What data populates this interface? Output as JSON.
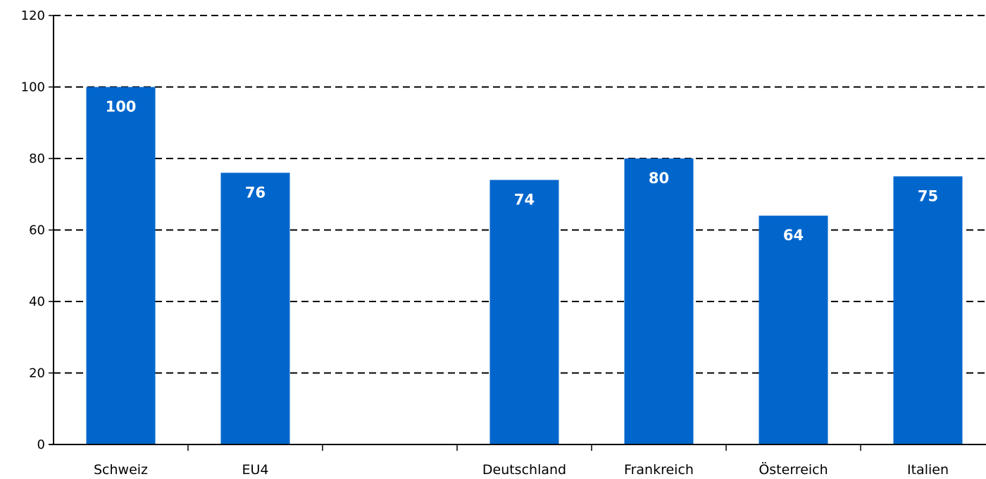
{
  "chart_data": {
    "type": "bar",
    "categories": [
      "Schweiz",
      "EU4",
      "",
      "Deutschland",
      "Frankreich",
      "Österreich",
      "Italien"
    ],
    "values": [
      100,
      76,
      null,
      74,
      80,
      64,
      75
    ],
    "data_labels": [
      "100",
      "76",
      "",
      "74",
      "80",
      "64",
      "75"
    ],
    "title": "",
    "xlabel": "",
    "ylabel": "",
    "ylim": [
      0,
      120
    ],
    "yticks": [
      0,
      20,
      40,
      60,
      80,
      100,
      120
    ],
    "grid": "dashed horizontal",
    "legend": "none",
    "bar_color": "#0066cc",
    "label_color": "#ffffff"
  }
}
